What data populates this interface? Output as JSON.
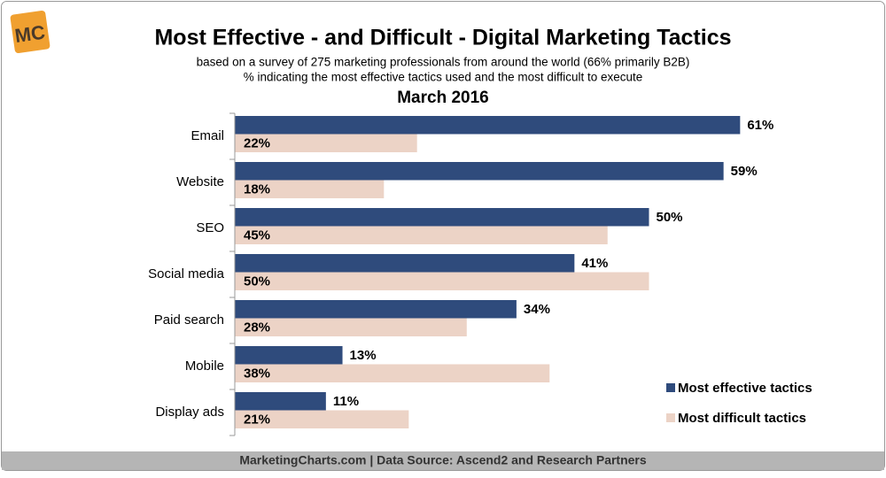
{
  "chart_data": {
    "type": "bar",
    "orientation": "horizontal",
    "logo": "MC",
    "title": "Most Effective - and Difficult - Digital Marketing Tactics",
    "subtitle": [
      "based on a survey of 275 marketing professionals from around the world (66% primarily B2B)",
      "% indicating the most effective tactics used and the most difficult to execute"
    ],
    "date": "March 2016",
    "categories": [
      "Email",
      "Website",
      "SEO",
      "Social media",
      "Paid search",
      "Mobile",
      "Display ads"
    ],
    "series": [
      {
        "name": "Most effective tactics",
        "color": "#2f4b7c",
        "values": [
          61,
          59,
          50,
          41,
          34,
          13,
          11
        ],
        "value_labels": [
          "61%",
          "59%",
          "50%",
          "41%",
          "34%",
          "13%",
          "11%"
        ]
      },
      {
        "name": "Most difficult tactics",
        "color": "#ecd3c6",
        "values": [
          22,
          18,
          45,
          50,
          28,
          38,
          21
        ],
        "value_labels": [
          "22%",
          "18%",
          "45%",
          "50%",
          "28%",
          "38%",
          "21%"
        ]
      }
    ],
    "legend": "lower right",
    "source": "MarketingCharts.com | Data Source: Ascend2 and Research Partners"
  }
}
